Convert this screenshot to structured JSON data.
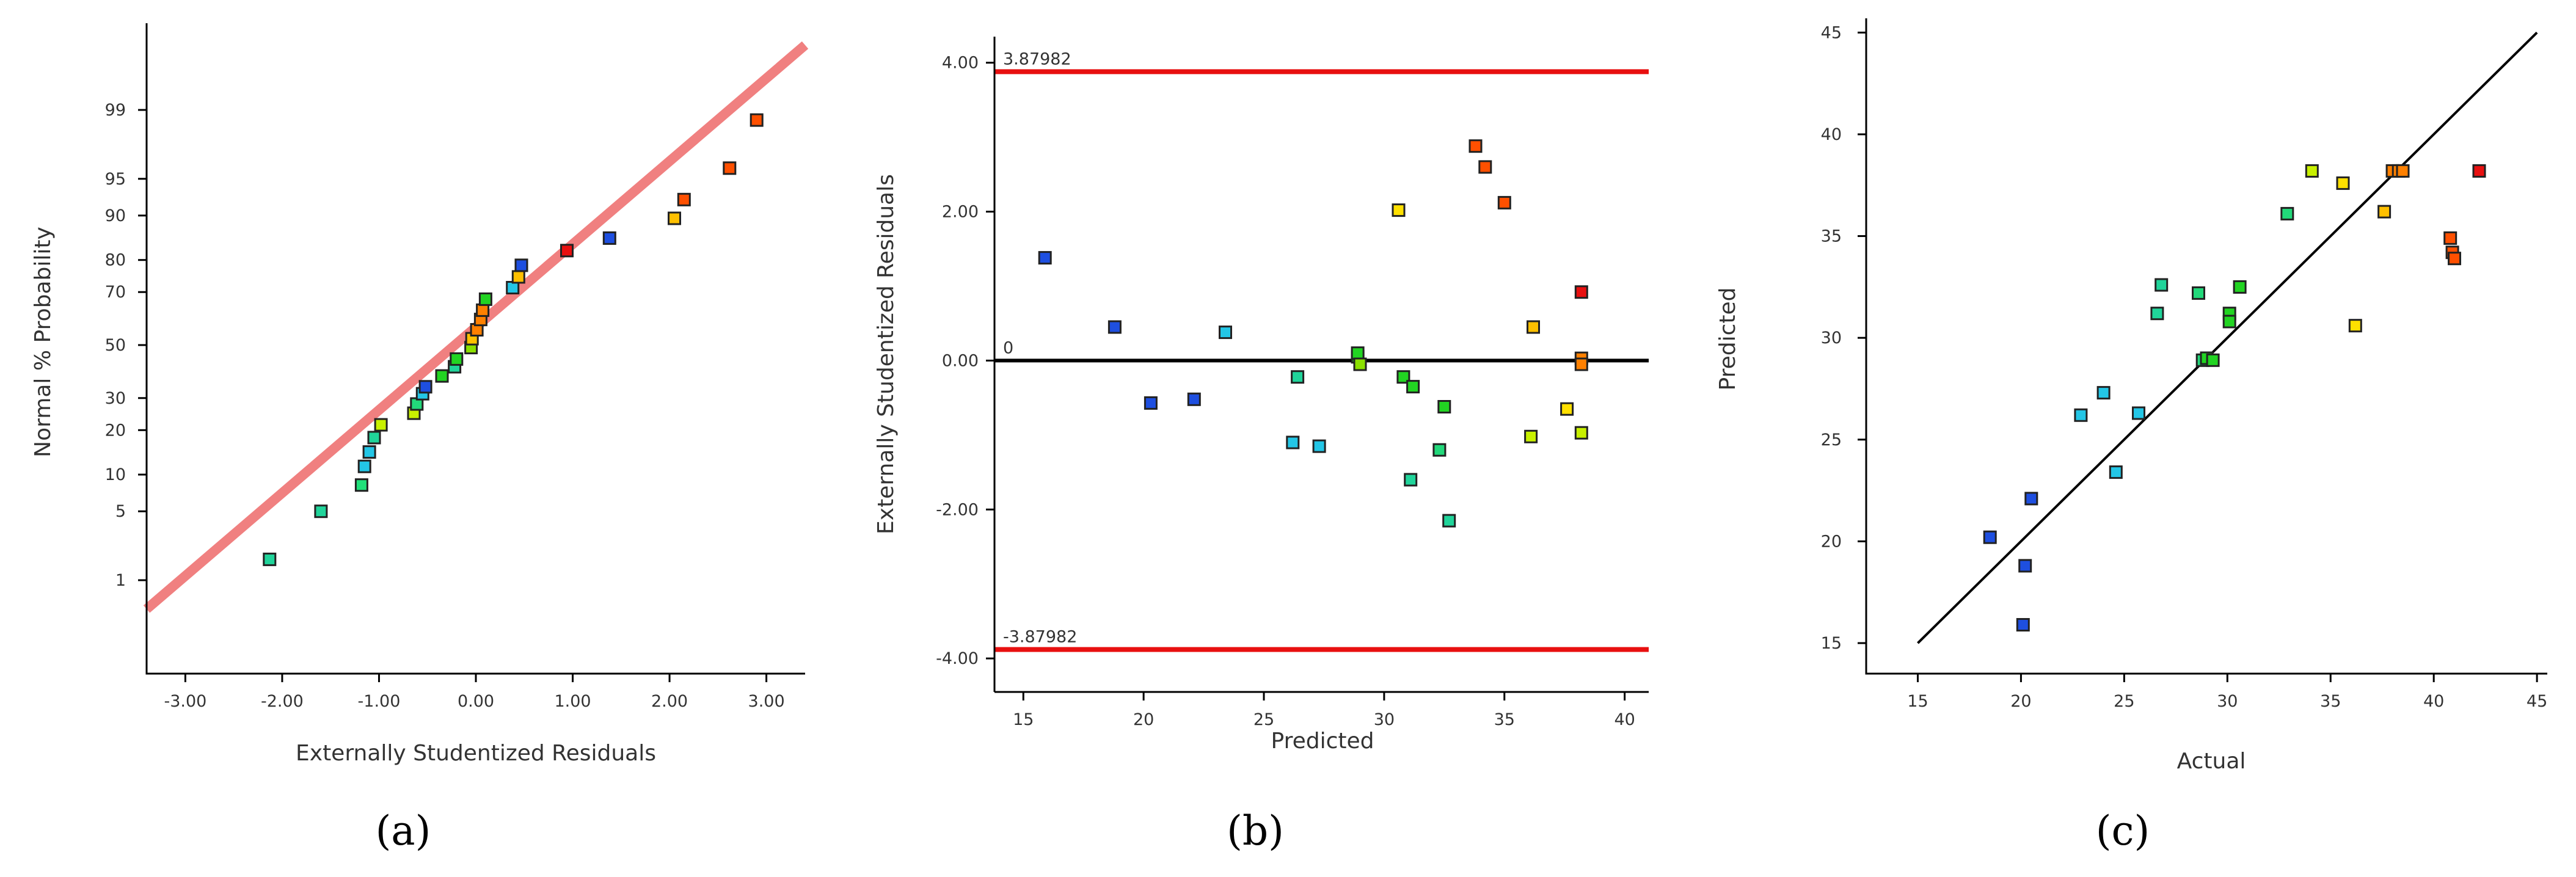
{
  "chart_data": [
    {
      "id": "a",
      "panel_label": "(a)",
      "type": "scatter",
      "subtype": "normal-probability-plot",
      "xlabel": "Externally Studentized Residuals",
      "ylabel": "Normal % Probability",
      "xlim": [
        -3.4,
        3.4
      ],
      "x_ticks": [
        -3,
        -2,
        -1,
        0,
        1,
        2,
        3
      ],
      "x_tick_labels": [
        "-3.00",
        "-2.00",
        "-1.00",
        "0.00",
        "1.00",
        "2.00",
        "3.00"
      ],
      "y_ticks": [
        1,
        5,
        10,
        20,
        30,
        50,
        70,
        80,
        90,
        95,
        99
      ],
      "y_tick_labels": [
        "1",
        "5",
        "10",
        "20",
        "30",
        "50",
        "70",
        "80",
        "90",
        "95",
        "99"
      ],
      "reference_line": {
        "color": "#f08080",
        "from": [
          -3.4,
          0.45
        ],
        "to": [
          3.4,
          99.85
        ]
      },
      "points": [
        {
          "x": -2.13,
          "y": 1.7,
          "color": "#20d49a"
        },
        {
          "x": -1.6,
          "y": 5.0,
          "color": "#20d49a"
        },
        {
          "x": -1.18,
          "y": 8.3,
          "color": "#20e07a"
        },
        {
          "x": -1.15,
          "y": 11.5,
          "color": "#23c6e6"
        },
        {
          "x": -1.1,
          "y": 14.5,
          "color": "#23c6e6"
        },
        {
          "x": -1.05,
          "y": 18.0,
          "color": "#20d49a"
        },
        {
          "x": -0.98,
          "y": 21.5,
          "color": "#c8f000"
        },
        {
          "x": -0.64,
          "y": 25.0,
          "color": "#c8f000"
        },
        {
          "x": -0.61,
          "y": 28.0,
          "color": "#22d87a"
        },
        {
          "x": -0.55,
          "y": 31.5,
          "color": "#23c6e6"
        },
        {
          "x": -0.52,
          "y": 34.0,
          "color": "#1e4fe0"
        },
        {
          "x": -0.35,
          "y": 38.0,
          "color": "#22d422"
        },
        {
          "x": -0.22,
          "y": 41.5,
          "color": "#20d49a"
        },
        {
          "x": -0.2,
          "y": 44.5,
          "color": "#22d422"
        },
        {
          "x": -0.05,
          "y": 49.0,
          "color": "#8be000"
        },
        {
          "x": -0.04,
          "y": 52.5,
          "color": "#ffc000"
        },
        {
          "x": 0.01,
          "y": 56.0,
          "color": "#ff8000"
        },
        {
          "x": 0.05,
          "y": 60.0,
          "color": "#ff8000"
        },
        {
          "x": 0.07,
          "y": 63.5,
          "color": "#ff8000"
        },
        {
          "x": 0.1,
          "y": 67.5,
          "color": "#22d422"
        },
        {
          "x": 0.38,
          "y": 71.5,
          "color": "#23c6e6"
        },
        {
          "x": 0.44,
          "y": 75.0,
          "color": "#ffc000"
        },
        {
          "x": 0.47,
          "y": 78.5,
          "color": "#1e4fe0"
        },
        {
          "x": 0.94,
          "y": 82.5,
          "color": "#e81010"
        },
        {
          "x": 1.38,
          "y": 85.5,
          "color": "#1e4fe0"
        },
        {
          "x": 2.05,
          "y": 89.5,
          "color": "#ffc000"
        },
        {
          "x": 2.15,
          "y": 92.5,
          "color": "#ff5000"
        },
        {
          "x": 2.62,
          "y": 96.0,
          "color": "#ff5000"
        },
        {
          "x": 2.9,
          "y": 98.7,
          "color": "#ff5000"
        }
      ]
    },
    {
      "id": "b",
      "panel_label": "(b)",
      "type": "scatter",
      "subtype": "residuals-vs-predicted",
      "xlabel": "Predicted",
      "ylabel": "Externally Studentized Residuals",
      "xlim": [
        13.8,
        41
      ],
      "ylim": [
        -4.45,
        4.35
      ],
      "x_ticks": [
        15,
        20,
        25,
        30,
        35,
        40
      ],
      "x_tick_labels": [
        "15",
        "20",
        "25",
        "30",
        "35",
        "40"
      ],
      "y_ticks": [
        -4,
        -2,
        0,
        2,
        4
      ],
      "y_tick_labels": [
        "-4.00",
        "-2.00",
        "0.00",
        "2.00",
        "4.00"
      ],
      "upper_limit": {
        "value": 3.87982,
        "label": "3.87982",
        "color": "#e81010"
      },
      "lower_limit": {
        "value": -3.87982,
        "label": "-3.87982",
        "color": "#e81010"
      },
      "zero_line": {
        "value": 0,
        "label": "0",
        "color": "#000000"
      },
      "points": [
        {
          "x": 15.9,
          "y": 1.38,
          "color": "#1e4fe0"
        },
        {
          "x": 18.8,
          "y": 0.45,
          "color": "#1e4fe0"
        },
        {
          "x": 20.3,
          "y": -0.57,
          "color": "#1e4fe0"
        },
        {
          "x": 22.1,
          "y": -0.52,
          "color": "#1e4fe0"
        },
        {
          "x": 23.4,
          "y": 0.38,
          "color": "#23c6e6"
        },
        {
          "x": 26.2,
          "y": -1.1,
          "color": "#23c6e6"
        },
        {
          "x": 26.4,
          "y": -0.22,
          "color": "#20d49a"
        },
        {
          "x": 27.3,
          "y": -1.15,
          "color": "#23c6e6"
        },
        {
          "x": 28.9,
          "y": 0.05,
          "color": "#22d422"
        },
        {
          "x": 28.9,
          "y": 0.1,
          "color": "#22d422"
        },
        {
          "x": 29.0,
          "y": -0.05,
          "color": "#8be000"
        },
        {
          "x": 30.6,
          "y": 2.02,
          "color": "#ffe000"
        },
        {
          "x": 30.8,
          "y": -0.22,
          "color": "#22d422"
        },
        {
          "x": 31.1,
          "y": -1.6,
          "color": "#20d49a"
        },
        {
          "x": 31.2,
          "y": -0.35,
          "color": "#22d422"
        },
        {
          "x": 32.3,
          "y": -1.2,
          "color": "#22d87a"
        },
        {
          "x": 32.5,
          "y": -0.62,
          "color": "#22d422"
        },
        {
          "x": 32.7,
          "y": -2.15,
          "color": "#20d49a"
        },
        {
          "x": 33.8,
          "y": 2.88,
          "color": "#ff5000"
        },
        {
          "x": 34.2,
          "y": 2.6,
          "color": "#ff5000"
        },
        {
          "x": 35.0,
          "y": 2.12,
          "color": "#ff5000"
        },
        {
          "x": 36.1,
          "y": -1.02,
          "color": "#c8f000"
        },
        {
          "x": 36.2,
          "y": 0.45,
          "color": "#ffc000"
        },
        {
          "x": 37.6,
          "y": -0.65,
          "color": "#ffe000"
        },
        {
          "x": 38.2,
          "y": 0.92,
          "color": "#e81010"
        },
        {
          "x": 38.2,
          "y": 0.03,
          "color": "#ff8000"
        },
        {
          "x": 38.2,
          "y": -0.05,
          "color": "#ff8000"
        },
        {
          "x": 38.2,
          "y": -0.97,
          "color": "#c8f000"
        }
      ]
    },
    {
      "id": "c",
      "panel_label": "(c)",
      "type": "scatter",
      "subtype": "predicted-vs-actual",
      "xlabel": "Actual",
      "ylabel": "Predicted",
      "xlim": [
        12.5,
        45.5
      ],
      "ylim": [
        13.5,
        45.7
      ],
      "x_ticks": [
        15,
        20,
        25,
        30,
        35,
        40,
        45
      ],
      "x_tick_labels": [
        "15",
        "20",
        "25",
        "30",
        "35",
        "40",
        "45"
      ],
      "y_ticks": [
        15,
        20,
        25,
        30,
        35,
        40,
        45
      ],
      "y_tick_labels": [
        "15",
        "20",
        "25",
        "30",
        "35",
        "40",
        "45"
      ],
      "reference_line": {
        "color": "#000000",
        "from": [
          15,
          15
        ],
        "to": [
          45,
          45
        ]
      },
      "points": [
        {
          "x": 18.5,
          "y": 20.2,
          "color": "#1e4fe0"
        },
        {
          "x": 20.2,
          "y": 18.8,
          "color": "#1e4fe0"
        },
        {
          "x": 20.1,
          "y": 15.9,
          "color": "#1e4fe0"
        },
        {
          "x": 20.5,
          "y": 22.1,
          "color": "#1e4fe0"
        },
        {
          "x": 22.9,
          "y": 26.2,
          "color": "#23c6e6"
        },
        {
          "x": 24.0,
          "y": 27.3,
          "color": "#23c6e6"
        },
        {
          "x": 24.6,
          "y": 23.4,
          "color": "#23c6e6"
        },
        {
          "x": 25.7,
          "y": 26.3,
          "color": "#23c6e6"
        },
        {
          "x": 26.6,
          "y": 31.2,
          "color": "#20d49a"
        },
        {
          "x": 26.8,
          "y": 32.6,
          "color": "#20d49a"
        },
        {
          "x": 28.6,
          "y": 32.2,
          "color": "#22d87a"
        },
        {
          "x": 28.8,
          "y": 28.9,
          "color": "#22d87a"
        },
        {
          "x": 29.0,
          "y": 29.0,
          "color": "#22d422"
        },
        {
          "x": 29.3,
          "y": 28.9,
          "color": "#22d422"
        },
        {
          "x": 30.1,
          "y": 31.2,
          "color": "#22d422"
        },
        {
          "x": 30.1,
          "y": 30.8,
          "color": "#22d422"
        },
        {
          "x": 30.6,
          "y": 32.5,
          "color": "#22d422"
        },
        {
          "x": 32.9,
          "y": 36.1,
          "color": "#22d87a"
        },
        {
          "x": 34.1,
          "y": 38.2,
          "color": "#c8f000"
        },
        {
          "x": 35.6,
          "y": 37.6,
          "color": "#ffe000"
        },
        {
          "x": 36.2,
          "y": 30.6,
          "color": "#ffe000"
        },
        {
          "x": 37.6,
          "y": 36.2,
          "color": "#ffc000"
        },
        {
          "x": 38.0,
          "y": 38.2,
          "color": "#ff8000"
        },
        {
          "x": 38.3,
          "y": 38.2,
          "color": "#ff8000"
        },
        {
          "x": 38.5,
          "y": 38.2,
          "color": "#ff8000"
        },
        {
          "x": 40.8,
          "y": 34.9,
          "color": "#ff5000"
        },
        {
          "x": 40.9,
          "y": 34.2,
          "color": "#ff5000"
        },
        {
          "x": 41.0,
          "y": 33.9,
          "color": "#ff5000"
        },
        {
          "x": 42.2,
          "y": 38.2,
          "color": "#e81010"
        }
      ]
    }
  ]
}
